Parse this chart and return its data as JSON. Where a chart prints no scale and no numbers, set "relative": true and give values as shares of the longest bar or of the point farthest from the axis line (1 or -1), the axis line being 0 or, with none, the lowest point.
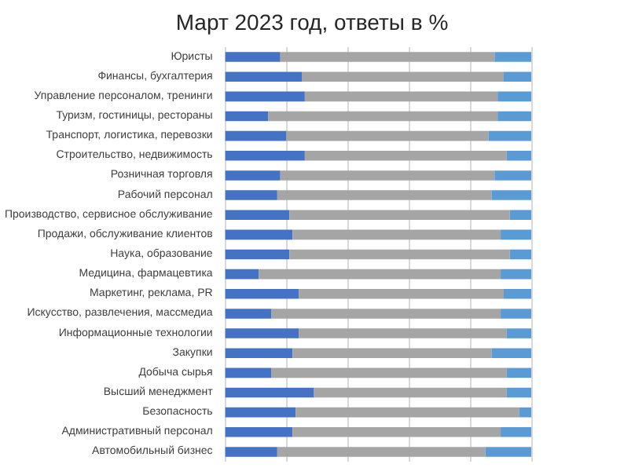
{
  "chart_data": {
    "type": "bar",
    "title": "Март 2023 год, ответы в %",
    "orientation": "horizontal",
    "stacked": true,
    "relative": true,
    "grid": "x",
    "categories": [
      "Юристы",
      "Финансы, бухгалтерия",
      "Управление персоналом, тренинги",
      "Туризм, гостиницы, рестораны",
      "Транспорт, логистика, перевозки",
      "Строительство, недвижимость",
      "Розничная торговля",
      "Рабочий персонал",
      "Производство, сервисное обслуживание",
      "Продажи, обслуживание клиентов",
      "Наука, образование",
      "Медицина, фармацевтика",
      "Маркетинг, реклама, PR",
      "Искусство, развлечения, массмедиа",
      "Информационные технологии",
      "Закупки",
      "Добыча сырья",
      "Высший менеджмент",
      "Безопасность",
      "Административный персонал",
      "Автомобильный бизнес"
    ],
    "series": [
      {
        "color": "#4472c4",
        "values": [
          0.18,
          0.25,
          0.26,
          0.14,
          0.2,
          0.26,
          0.18,
          0.17,
          0.21,
          0.22,
          0.21,
          0.11,
          0.24,
          0.15,
          0.24,
          0.22,
          0.15,
          0.29,
          0.23,
          0.22,
          0.17
        ]
      },
      {
        "color": "#a5a5a5",
        "values": [
          0.7,
          0.66,
          0.63,
          0.75,
          0.66,
          0.66,
          0.7,
          0.7,
          0.72,
          0.68,
          0.72,
          0.79,
          0.67,
          0.75,
          0.68,
          0.65,
          0.77,
          0.63,
          0.73,
          0.68,
          0.68
        ]
      },
      {
        "color": "#5b9bd5",
        "values": [
          0.12,
          0.09,
          0.11,
          0.11,
          0.14,
          0.08,
          0.12,
          0.13,
          0.07,
          0.1,
          0.07,
          0.1,
          0.09,
          0.1,
          0.08,
          0.13,
          0.08,
          0.08,
          0.04,
          0.1,
          0.15
        ]
      }
    ]
  }
}
